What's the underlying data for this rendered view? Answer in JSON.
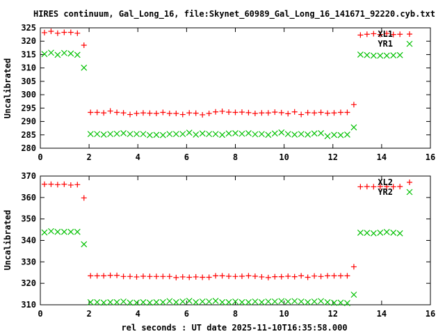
{
  "chart_data": [
    {
      "type": "scatter",
      "title": "HIRES continuum, Gal_Long_16, file:Skynet_60989_Gal_Long_16_141671_92220.cyb.txt",
      "xlabel": "",
      "ylabel": "Uncalibrated",
      "xlim": [
        0,
        16
      ],
      "ylim": [
        280,
        325
      ],
      "xticks": [
        "0",
        "2",
        "4",
        "6",
        "8",
        "10",
        "12",
        "14",
        "16"
      ],
      "yticks": [
        "280",
        "285",
        "290",
        "295",
        "300",
        "305",
        "310",
        "315",
        "320",
        "325"
      ],
      "legend": "top-right",
      "x_start": 0.17,
      "x_step": 0.27,
      "series": [
        {
          "name": "XL1",
          "color": "#ff0000",
          "marker": "plus",
          "values": [
            323.2,
            323.7,
            323.0,
            323.3,
            323.3,
            323.0,
            318.5,
            293.4,
            293.4,
            293.2,
            293.9,
            293.4,
            293.2,
            292.6,
            293.0,
            293.2,
            293.1,
            293.0,
            293.4,
            293.0,
            293.0,
            292.6,
            293.2,
            293.1,
            292.5,
            293.0,
            293.6,
            293.8,
            293.5,
            293.4,
            293.5,
            293.3,
            293.0,
            293.2,
            293.2,
            293.5,
            293.3,
            292.9,
            293.6,
            292.6,
            293.3,
            293.2,
            293.4,
            293.1,
            293.2,
            293.4,
            293.4,
            296.3,
            322.3,
            322.6,
            322.8,
            322.5,
            322.9,
            322.5,
            322.6
          ]
        },
        {
          "name": "YR1",
          "color": "#00c000",
          "marker": "cross",
          "values": [
            315.2,
            315.7,
            314.9,
            315.6,
            315.4,
            314.9,
            310.1,
            285.3,
            285.3,
            285.1,
            285.3,
            285.4,
            285.6,
            285.3,
            285.3,
            285.3,
            284.9,
            285.0,
            284.9,
            285.3,
            285.3,
            285.3,
            285.8,
            285.1,
            285.5,
            285.3,
            285.3,
            285.0,
            285.5,
            285.6,
            285.4,
            285.6,
            285.2,
            285.3,
            285.0,
            285.5,
            285.9,
            285.3,
            285.1,
            285.3,
            285.1,
            285.5,
            285.6,
            284.5,
            285.0,
            284.9,
            285.1,
            287.8,
            315.0,
            314.8,
            314.6,
            314.6,
            314.6,
            314.7,
            314.8
          ]
        }
      ]
    },
    {
      "type": "scatter",
      "xlabel": "rel seconds : UT date 2025-11-10T16:35:58.000",
      "ylabel": "Uncalibrated",
      "xlim": [
        0,
        16
      ],
      "ylim": [
        310,
        370
      ],
      "xticks": [
        "0",
        "2",
        "4",
        "6",
        "8",
        "10",
        "12",
        "14",
        "16"
      ],
      "yticks": [
        "310",
        "320",
        "330",
        "340",
        "350",
        "360",
        "370"
      ],
      "legend": "top-right",
      "x_start": 0.17,
      "x_step": 0.27,
      "series": [
        {
          "name": "XL2",
          "color": "#ff0000",
          "marker": "plus",
          "values": [
            366.2,
            366.2,
            366.0,
            366.2,
            365.8,
            366.0,
            359.8,
            323.5,
            323.5,
            323.5,
            323.7,
            323.7,
            323.2,
            323.2,
            323.0,
            323.3,
            323.2,
            323.2,
            323.2,
            323.2,
            322.7,
            323.0,
            322.8,
            323.0,
            322.8,
            322.8,
            323.5,
            323.5,
            323.3,
            323.2,
            323.3,
            323.5,
            323.3,
            323.0,
            322.7,
            323.1,
            323.1,
            323.3,
            323.1,
            323.5,
            322.8,
            323.4,
            323.2,
            323.5,
            323.5,
            323.5,
            323.5,
            327.7,
            365.0,
            365.1,
            365.0,
            365.1,
            365.1,
            365.0,
            365.1
          ]
        },
        {
          "name": "YR2",
          "color": "#00c000",
          "marker": "cross",
          "values": [
            343.7,
            344.3,
            344.0,
            344.0,
            344.0,
            344.0,
            338.2,
            311.2,
            311.2,
            311.0,
            311.2,
            311.2,
            311.5,
            311.0,
            311.0,
            311.2,
            311.0,
            311.2,
            311.2,
            311.7,
            311.2,
            311.5,
            311.8,
            311.2,
            311.5,
            311.5,
            311.8,
            311.2,
            311.2,
            311.5,
            311.2,
            311.2,
            311.5,
            311.2,
            311.5,
            311.5,
            311.7,
            311.5,
            311.7,
            311.5,
            311.2,
            311.5,
            311.7,
            311.2,
            310.9,
            311.0,
            310.8,
            314.7,
            343.6,
            343.5,
            343.3,
            343.6,
            343.9,
            343.6,
            343.3
          ]
        }
      ]
    }
  ]
}
